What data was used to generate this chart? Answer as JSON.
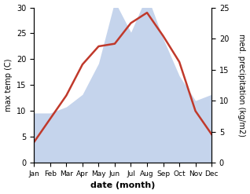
{
  "months": [
    "Jan",
    "Feb",
    "Mar",
    "Apr",
    "May",
    "Jun",
    "Jul",
    "Aug",
    "Sep",
    "Oct",
    "Nov",
    "Dec"
  ],
  "temperature": [
    4.0,
    8.5,
    13.0,
    19.0,
    22.5,
    23.0,
    27.0,
    29.0,
    24.5,
    19.5,
    10.0,
    5.5
  ],
  "precipitation": [
    8,
    8,
    9,
    11,
    16,
    26,
    21,
    27,
    20,
    14,
    10,
    11
  ],
  "temp_color": "#c0392b",
  "precip_color": "#c5d4ec",
  "temp_ylim": [
    0,
    30
  ],
  "precip_ylim": [
    0,
    25
  ],
  "temp_yticks": [
    0,
    5,
    10,
    15,
    20,
    25,
    30
  ],
  "precip_yticks": [
    0,
    5,
    10,
    15,
    20,
    25
  ],
  "ylabel_left": "max temp (C)",
  "ylabel_right": "med. precipitation (kg/m2)",
  "xlabel": "date (month)",
  "bg_color": "#ffffff",
  "line_width": 1.8
}
